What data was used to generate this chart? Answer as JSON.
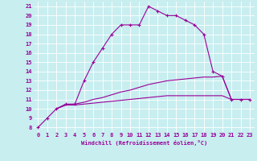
{
  "xlabel": "Windchill (Refroidissement éolien,°C)",
  "bg_color": "#c8eef0",
  "grid_color": "#ffffff",
  "line_color": "#990099",
  "xlim": [
    -0.5,
    23.5
  ],
  "ylim": [
    7.5,
    21.5
  ],
  "xticks": [
    0,
    1,
    2,
    3,
    4,
    5,
    6,
    7,
    8,
    9,
    10,
    11,
    12,
    13,
    14,
    15,
    16,
    17,
    18,
    19,
    20,
    21,
    22,
    23
  ],
  "yticks": [
    8,
    9,
    10,
    11,
    12,
    13,
    14,
    15,
    16,
    17,
    18,
    19,
    20,
    21
  ],
  "curve1_x": [
    0,
    1,
    2,
    3,
    4,
    5,
    6,
    7,
    8,
    9,
    10,
    11,
    12,
    13,
    14,
    15,
    16,
    17,
    18,
    19,
    20,
    21,
    22,
    23
  ],
  "curve1_y": [
    8,
    9,
    10,
    10.5,
    10.5,
    13,
    15,
    16.5,
    18,
    19,
    19,
    19,
    21,
    20.5,
    20,
    20,
    19.5,
    19,
    18,
    14,
    13.5,
    11,
    11,
    11
  ],
  "curve2_x": [
    2,
    3,
    4,
    5,
    6,
    7,
    8,
    9,
    10,
    11,
    12,
    13,
    14,
    15,
    16,
    17,
    18,
    19,
    20,
    21,
    22,
    23
  ],
  "curve2_y": [
    10,
    10.4,
    10.4,
    10.5,
    10.6,
    10.7,
    10.8,
    10.9,
    11.0,
    11.1,
    11.2,
    11.3,
    11.4,
    11.4,
    11.4,
    11.4,
    11.4,
    11.4,
    11.4,
    11.0,
    11.0,
    11.0
  ],
  "curve3_x": [
    2,
    3,
    4,
    5,
    6,
    7,
    8,
    9,
    10,
    11,
    12,
    13,
    14,
    15,
    16,
    17,
    18,
    19,
    20,
    21,
    22,
    23
  ],
  "curve3_y": [
    10,
    10.4,
    10.5,
    10.7,
    11.0,
    11.2,
    11.5,
    11.8,
    12.0,
    12.3,
    12.6,
    12.8,
    13.0,
    13.1,
    13.2,
    13.3,
    13.4,
    13.4,
    13.5,
    11.0,
    11.0,
    11.0
  ],
  "tick_fontsize": 5,
  "xlabel_fontsize": 5,
  "lw": 0.8,
  "marker_size": 2.5
}
